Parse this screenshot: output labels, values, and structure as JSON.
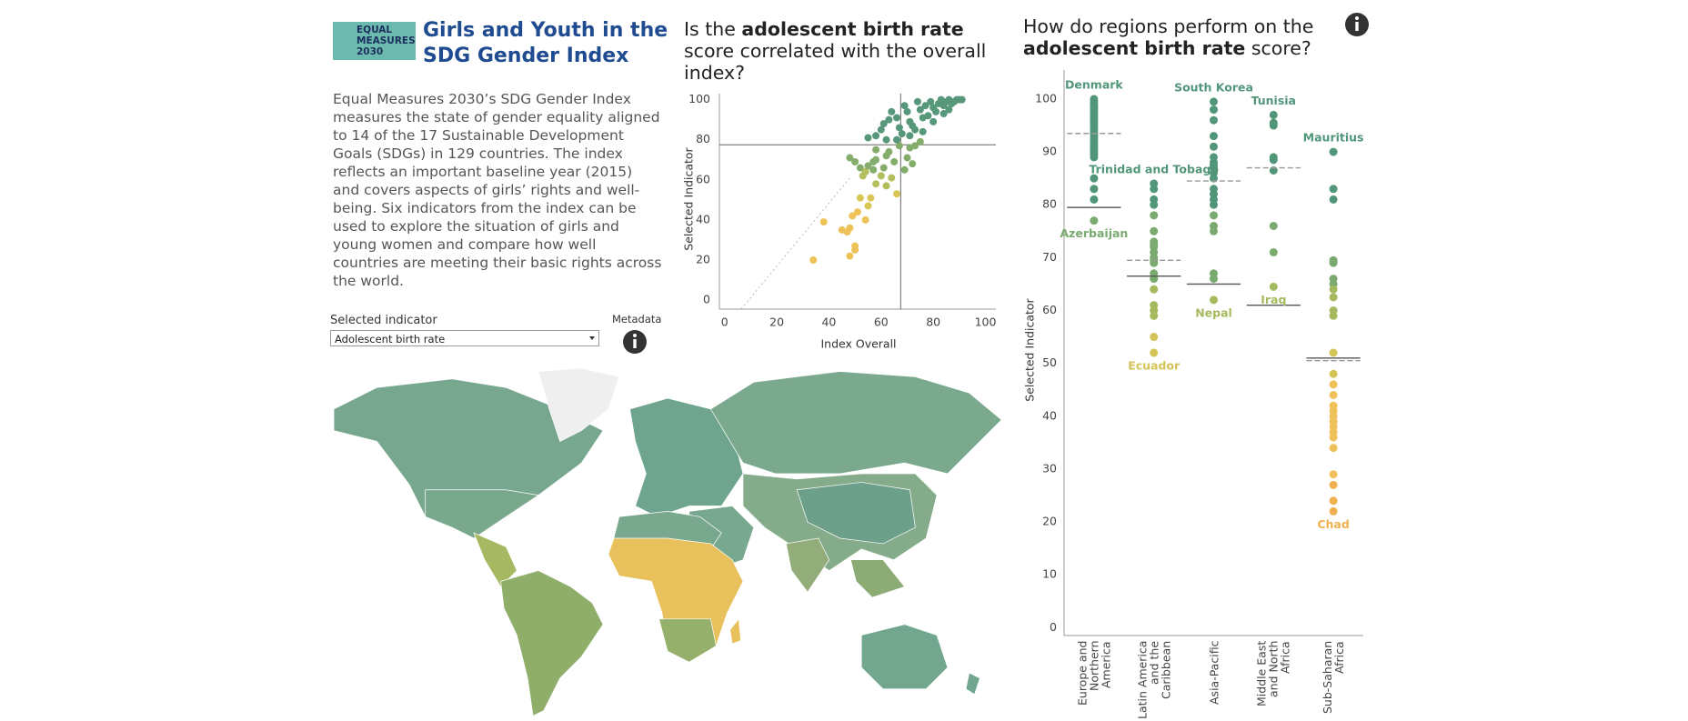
{
  "logo": "EQUAL MEASURES 2030",
  "header": {
    "title": "Girls and Youth in the SDG Gender Index",
    "description": "Equal Measures 2030’s SDG Gender Index measures the state of gender equality aligned to 14 of the 17 Sustainable Development Goals (SDGs) in 129 countries. The index reflects an important baseline year (2015) and covers aspects of girls’ rights and well-being. Six indicators from the index can be used to explore the situation of girls and young women and compare how well countries are meeting their basic rights across the world."
  },
  "controls": {
    "indicator_label": "Selected indicator",
    "indicator_value": "Adolescent birth rate",
    "metadata_label": "Metadata"
  },
  "chart_data": [
    {
      "type": "scatter",
      "title_parts": [
        "Is the ",
        "adolescent birth rate",
        " score correlated with the overall index?"
      ],
      "x_label": "Index Overall",
      "y_label": "Selected Indicator",
      "x": [
        34,
        38,
        45,
        47,
        48,
        48,
        50,
        50,
        49,
        51,
        54,
        55,
        56,
        52,
        66,
        62,
        58,
        48,
        50,
        52,
        54,
        55,
        57,
        58,
        60,
        61,
        62,
        63,
        64,
        65,
        67,
        69,
        70,
        72,
        71,
        73,
        75,
        58,
        57,
        53,
        58,
        60,
        61,
        63,
        64,
        66,
        67,
        68,
        69,
        70,
        71,
        72,
        73,
        74,
        75,
        76,
        77,
        78,
        79,
        80,
        81,
        82,
        83,
        84,
        85,
        86,
        87,
        88,
        89,
        90,
        91,
        86,
        84,
        80,
        76,
        71,
        66,
        62,
        55
      ],
      "values": [
        20,
        39,
        35,
        34,
        36,
        22,
        25,
        27,
        42,
        44,
        40,
        47,
        51,
        51,
        53,
        57,
        58,
        71,
        69,
        66,
        64,
        67,
        65,
        70,
        62,
        66,
        72,
        74,
        61,
        69,
        77,
        65,
        71,
        68,
        76,
        77,
        79,
        75,
        69,
        62,
        82,
        85,
        88,
        90,
        94,
        91,
        86,
        83,
        97,
        94,
        89,
        87,
        85,
        99,
        95,
        91,
        97,
        92,
        99,
        96,
        94,
        98,
        100,
        97,
        99,
        100,
        98,
        99,
        100,
        100,
        100,
        95,
        93,
        89,
        84,
        82,
        80,
        80,
        81
      ],
      "xlim": [
        -2,
        104
      ],
      "ylim": [
        -4.5,
        103
      ],
      "xticks": [
        0,
        20,
        40,
        60,
        80,
        100
      ],
      "yticks": [
        0,
        20,
        40,
        60,
        80,
        100
      ],
      "reference_x": 67.5,
      "reference_y": 77.5,
      "color_stops": [
        {
          "min": 80,
          "color": "#57977a"
        },
        {
          "min": 65,
          "color": "#84ad6c"
        },
        {
          "min": 55,
          "color": "#b3bf5c"
        },
        {
          "min": 45,
          "color": "#d9c655"
        },
        {
          "min": 0,
          "color": "#edc257"
        }
      ]
    },
    {
      "type": "strip",
      "title_parts": [
        "How do regions perform on the ",
        "adolescent birth rate",
        " score?"
      ],
      "y_label": "Selected Indicator",
      "categories": [
        "Europe and Northern America",
        "Latin America and the Caribbean",
        "Asia-Pacific",
        "Middle East and North Africa",
        "Sub-Saharan Africa"
      ],
      "values": [
        [
          100,
          99.5,
          99,
          98.7,
          98.3,
          98,
          97.5,
          97,
          96.5,
          96,
          95.5,
          95,
          94.5,
          94,
          93.5,
          93,
          92.5,
          92,
          91.5,
          91,
          90.5,
          90,
          89.5,
          89,
          85,
          83,
          81,
          77
        ],
        [
          84,
          83,
          81,
          80,
          78,
          75,
          73,
          72.5,
          72,
          71,
          70,
          69.5,
          69,
          67,
          66,
          64,
          61,
          60,
          59,
          55,
          52
        ],
        [
          99.5,
          98,
          96,
          93,
          91,
          89,
          88,
          87.5,
          87,
          86,
          85,
          83,
          82,
          81,
          80,
          78,
          76,
          75,
          67,
          66,
          62
        ],
        [
          97,
          95.5,
          95,
          89,
          88.5,
          86.5,
          76,
          71,
          64.5
        ],
        [
          90,
          83,
          81,
          69.5,
          69,
          66,
          65,
          64,
          62.5,
          60,
          59,
          52,
          48,
          46,
          44,
          42,
          41,
          40,
          39,
          38,
          37,
          36,
          34,
          29,
          27,
          24,
          22
        ]
      ],
      "solid_lines": [
        79.5,
        66.5,
        65,
        61,
        51
      ],
      "dashed_lines": [
        93.5,
        69.5,
        84.5,
        87,
        50.5
      ],
      "annotations": [
        {
          "text": "Denmark",
          "category": 0,
          "value": 100,
          "position": "above"
        },
        {
          "text": "Azerbaijan",
          "category": 0,
          "value": 77,
          "position": "below"
        },
        {
          "text": "Trinidad and Tobago",
          "category": 1,
          "value": 84,
          "position": "above"
        },
        {
          "text": "Ecuador",
          "category": 1,
          "value": 52,
          "position": "below"
        },
        {
          "text": "South Korea",
          "category": 2,
          "value": 99.5,
          "position": "above"
        },
        {
          "text": "Nepal",
          "category": 2,
          "value": 62,
          "position": "below"
        },
        {
          "text": "Tunisia",
          "category": 3,
          "value": 97,
          "position": "above"
        },
        {
          "text": "Iraq",
          "category": 3,
          "value": 64.5,
          "position": "below"
        },
        {
          "text": "Mauritius",
          "category": 4,
          "value": 90,
          "position": "above"
        },
        {
          "text": "Chad",
          "category": 4,
          "value": 22,
          "position": "below"
        }
      ],
      "ylim": [
        -1.5,
        105.5
      ],
      "yticks": [
        0,
        10,
        20,
        30,
        40,
        50,
        60,
        70,
        80,
        90,
        100
      ],
      "color_stops": [
        {
          "min": 80,
          "color": "#52967a"
        },
        {
          "min": 65,
          "color": "#7aaa6f"
        },
        {
          "min": 56,
          "color": "#a5ba5e"
        },
        {
          "min": 48,
          "color": "#d3c457"
        },
        {
          "min": 28,
          "color": "#efc15a"
        },
        {
          "min": 0,
          "color": "#f0b052"
        }
      ]
    }
  ]
}
